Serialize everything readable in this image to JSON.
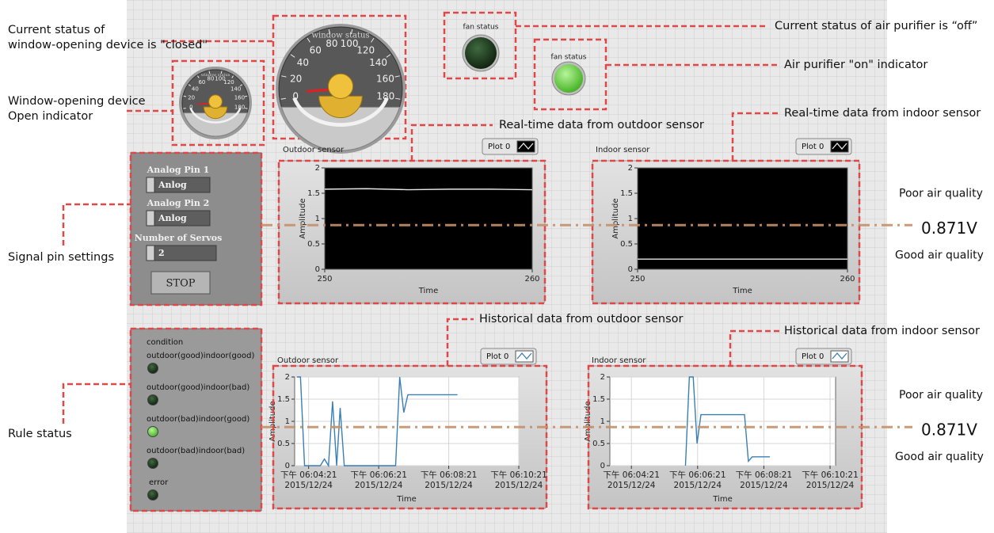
{
  "annotations": [
    [
      "Current status of",
      "window-opening device is \"closed\""
    ],
    [
      "Window-opening device",
      "Open indicator"
    ],
    [
      "Signal pin settings"
    ],
    [
      "Rule status"
    ],
    [
      "Current status of air purifier is  “off”"
    ],
    [
      "Air purifier \"on\" indicator"
    ],
    [
      "Real-time data from outdoor sensor"
    ],
    [
      "Real-time data from indoor sensor"
    ],
    [
      "Historical data from outdoor sensor"
    ],
    [
      "Historical data from indoor sensor"
    ]
  ],
  "thresholds": [
    {
      "value": 0.871,
      "label": "0.871V",
      "above": "Poor air quality",
      "below": "Good air quality"
    },
    {
      "value": 0.871,
      "label": "0.871V",
      "above": "Poor air quality",
      "below": "Good air quality"
    }
  ],
  "gauges": [
    {
      "label": "window status",
      "range": [
        0,
        180
      ],
      "ticks": [
        0,
        20,
        40,
        60,
        80,
        100,
        120,
        140,
        160,
        180
      ],
      "value": 5
    },
    {
      "label": "window status",
      "range": [
        0,
        180
      ],
      "ticks": [
        0,
        20,
        40,
        60,
        80,
        100,
        120,
        140,
        160,
        180
      ],
      "value": 5
    }
  ],
  "fans": [
    {
      "label": "fan status",
      "on": false
    },
    {
      "label": "fan status",
      "on": true
    }
  ],
  "controls": {
    "pins": [
      {
        "label": "Analog Pin 1",
        "value": "Anlog"
      },
      {
        "label": "Analog Pin 2",
        "value": "Anlog"
      }
    ],
    "servos": {
      "label": "Number of Servos",
      "value": 2
    },
    "button": "STOP"
  },
  "rules": {
    "title": "condition",
    "items": [
      {
        "label": "outdoor(good)indoor(good)",
        "on": false
      },
      {
        "label": "outdoor(good)indoor(bad)",
        "on": false
      },
      {
        "label": "outdoor(bad)indoor(good)",
        "on": true
      },
      {
        "label": "outdoor(bad)indoor(bad)",
        "on": false
      },
      {
        "label": "error",
        "on": false
      }
    ]
  },
  "charts": [
    {
      "type": "line",
      "title": "Outdoor sensor",
      "xlabel": "Time",
      "ylabel": "Amplitude",
      "background": "#000000",
      "grid": false,
      "xlim": [
        250,
        260
      ],
      "xticks": [
        250,
        260
      ],
      "ylim": [
        0,
        2
      ],
      "yticks": [
        0,
        0.5,
        1,
        1.5,
        2
      ],
      "series": [
        {
          "name": "Plot 0",
          "color": "#e6e6e6",
          "x": [
            250,
            252,
            254,
            256,
            258,
            260
          ],
          "values": [
            1.58,
            1.59,
            1.57,
            1.58,
            1.58,
            1.57
          ]
        }
      ]
    },
    {
      "type": "line",
      "title": "Indoor sensor",
      "xlabel": "Time",
      "ylabel": "Amplitude",
      "background": "#000000",
      "grid": false,
      "xlim": [
        250,
        260
      ],
      "xticks": [
        250,
        260
      ],
      "ylim": [
        0,
        2
      ],
      "yticks": [
        0,
        0.5,
        1,
        1.5,
        2
      ],
      "series": [
        {
          "name": "Plot 0",
          "color": "#e6e6e6",
          "x": [
            250,
            252,
            254,
            256,
            258,
            260
          ],
          "values": [
            0.2,
            0.2,
            0.2,
            0.2,
            0.2,
            0.2
          ]
        }
      ]
    },
    {
      "type": "line",
      "title": "Outdoor sensor",
      "xlabel": "Time",
      "ylabel": "Amplitude",
      "background": "#ffffff",
      "grid": true,
      "xlim": [
        65037,
        65421
      ],
      "xticks": [
        {
          "value": 65061,
          "label": "下午 06:04:21\n2015/12/24"
        },
        {
          "value": 65181,
          "label": "下午 06:06:21\n2015/12/24"
        },
        {
          "value": 65301,
          "label": "下午 06:08:21\n2015/12/24"
        },
        {
          "value": 65421,
          "label": "下午 06:10:21\n2015/12/24"
        }
      ],
      "ylim": [
        0,
        2
      ],
      "yticks": [
        0,
        0.5,
        1,
        1.5,
        2
      ],
      "series": [
        {
          "name": "Plot 0",
          "color": "#3a7fb5",
          "x": [
            65041,
            65047,
            65054,
            65081,
            65088,
            65095,
            65102,
            65109,
            65115,
            65122,
            65129,
            65210,
            65217,
            65224,
            65231,
            65316
          ],
          "values": [
            2,
            2,
            0,
            0,
            0.15,
            0,
            1.45,
            0,
            1.3,
            0,
            0,
            0,
            2,
            1.2,
            1.6,
            1.6
          ]
        }
      ]
    },
    {
      "type": "line",
      "title": "Indoor sensor",
      "xlabel": "Time",
      "ylabel": "Amplitude",
      "background": "#ffffff",
      "grid": true,
      "xlim": [
        65022,
        65431
      ],
      "xticks": [
        {
          "value": 65061,
          "label": "下午 06:04:21\n2015/12/24"
        },
        {
          "value": 65181,
          "label": "下午 06:06:21\n2015/12/24"
        },
        {
          "value": 65301,
          "label": "下午 06:08:21\n2015/12/24"
        },
        {
          "value": 65421,
          "label": "下午 06:10:21\n2015/12/24"
        }
      ],
      "ylim": [
        0,
        2
      ],
      "yticks": [
        0,
        0.5,
        1,
        1.5,
        2
      ],
      "series": [
        {
          "name": "Plot 0",
          "color": "#3a7fb5",
          "x": [
            65159,
            65166,
            65173,
            65180,
            65187,
            65192,
            65266,
            65273,
            65280,
            65312
          ],
          "values": [
            0,
            2,
            2,
            0.5,
            1.15,
            1.15,
            1.15,
            0.1,
            0.2,
            0.2
          ]
        }
      ]
    }
  ]
}
